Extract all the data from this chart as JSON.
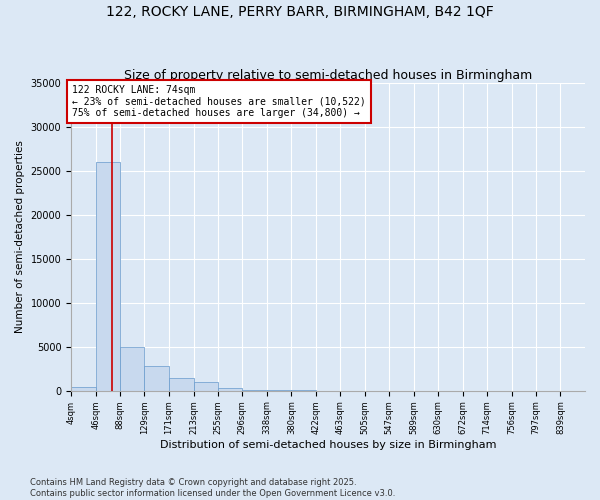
{
  "title": "122, ROCKY LANE, PERRY BARR, BIRMINGHAM, B42 1QF",
  "subtitle": "Size of property relative to semi-detached houses in Birmingham",
  "xlabel": "Distribution of semi-detached houses by size in Birmingham",
  "ylabel": "Number of semi-detached properties",
  "bin_edges": [
    4,
    46,
    88,
    129,
    171,
    213,
    255,
    296,
    338,
    380,
    422,
    463,
    505,
    547,
    589,
    630,
    672,
    714,
    756,
    797,
    839
  ],
  "bar_heights": [
    400,
    26000,
    5000,
    2800,
    1500,
    1000,
    300,
    100,
    50,
    30,
    20,
    10,
    5,
    3,
    2,
    1,
    1,
    1,
    0,
    0
  ],
  "bar_color": "#c8d9ee",
  "bar_edge_color": "#6699cc",
  "property_size": 74,
  "red_line_color": "#cc0000",
  "annotation_text": "122 ROCKY LANE: 74sqm\n← 23% of semi-detached houses are smaller (10,522)\n75% of semi-detached houses are larger (34,800) →",
  "annotation_box_edge": "#cc0000",
  "annotation_box_face": "white",
  "ylim": [
    0,
    35000
  ],
  "yticks": [
    0,
    5000,
    10000,
    15000,
    20000,
    25000,
    30000,
    35000
  ],
  "background_color": "#dce8f5",
  "grid_color": "#ffffff",
  "footer": "Contains HM Land Registry data © Crown copyright and database right 2025.\nContains public sector information licensed under the Open Government Licence v3.0.",
  "title_fontsize": 10,
  "subtitle_fontsize": 9,
  "ylabel_fontsize": 7.5,
  "xlabel_fontsize": 8,
  "tick_fontsize": 7,
  "xtick_fontsize": 6,
  "annotation_fontsize": 7,
  "footer_fontsize": 6
}
